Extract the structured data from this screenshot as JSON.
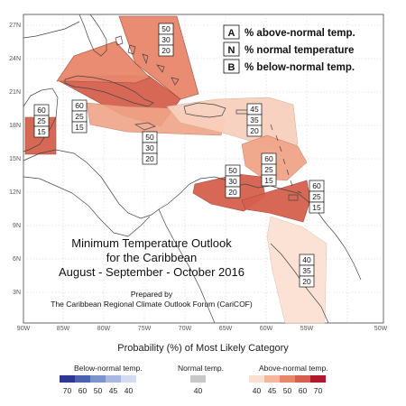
{
  "map": {
    "lon_labels": [
      "90W",
      "85W",
      "80W",
      "75W",
      "70W",
      "65W",
      "60W",
      "55W",
      "50W"
    ],
    "lat_labels": [
      "27N",
      "24N",
      "21N",
      "18N",
      "15N",
      "12N",
      "9N",
      "6N",
      "3N"
    ]
  },
  "legend": {
    "items": [
      {
        "key": "A",
        "text": "% above-normal temp."
      },
      {
        "key": "N",
        "text": "% normal temperature"
      },
      {
        "key": "B",
        "text": "% below-normal temp."
      }
    ]
  },
  "regions": [
    {
      "name": "bahamas",
      "values": [
        "50",
        "30",
        "20"
      ],
      "color": "#e8866a"
    },
    {
      "name": "belize",
      "values": [
        "60",
        "25",
        "15"
      ],
      "color": "#d6604d"
    },
    {
      "name": "cuba",
      "values": [
        "60",
        "25",
        "15"
      ],
      "color": "#d6604d"
    },
    {
      "name": "jamaica",
      "values": [
        "50",
        "30",
        "20"
      ],
      "color": "#f0a488"
    },
    {
      "name": "greater-antilles",
      "values": [
        "45",
        "35",
        "20"
      ],
      "color": "#f8d0bd"
    },
    {
      "name": "leeward-islands",
      "values": [
        "50",
        "30",
        "20"
      ],
      "color": "#f0a488"
    },
    {
      "name": "abc-islands",
      "values": [
        "60",
        "25",
        "15"
      ],
      "color": "#d6604d"
    },
    {
      "name": "trinidad",
      "values": [
        "60",
        "25",
        "15"
      ],
      "color": "#d6604d"
    },
    {
      "name": "guianas",
      "values": [
        "40",
        "35",
        "20"
      ],
      "color": "#fbe0d2"
    }
  ],
  "title": {
    "line1": "Minimum Temperature Outlook",
    "line2": "for the Caribbean",
    "line3": "August - September - October 2016"
  },
  "prepared": {
    "line1": "Prepared by",
    "line2": "The Caribbean Regional Climate Outlook Forum (CariCOF)"
  },
  "colorbar": {
    "title": "Probability (%) of Most Likely Category",
    "below": {
      "label": "Below-normal temp.",
      "ticks": [
        "70",
        "60",
        "50",
        "45",
        "40"
      ],
      "colors": [
        "#313695",
        "#4a62b0",
        "#7d93cc",
        "#aab8e0",
        "#d3dbf0"
      ]
    },
    "normal": {
      "label": "Normal temp.",
      "ticks": [
        "40"
      ],
      "colors": [
        "#c8c8c8"
      ]
    },
    "above": {
      "label": "Above-normal temp.",
      "ticks": [
        "40",
        "45",
        "50",
        "60",
        "70"
      ],
      "colors": [
        "#fbe0d2",
        "#f5b69c",
        "#e8866a",
        "#d6604d",
        "#b2182b"
      ]
    }
  }
}
